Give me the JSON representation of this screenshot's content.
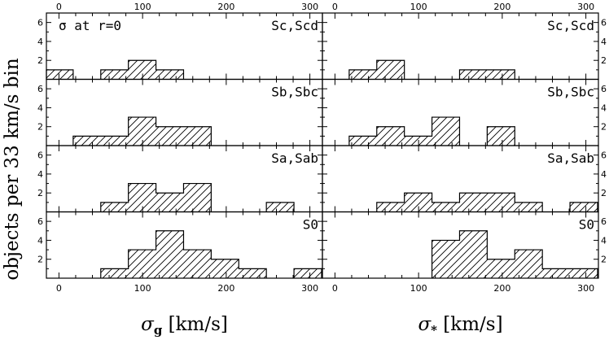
{
  "ylabel": "objects per 33 km/s bin",
  "chart_data": [
    {
      "type": "bar",
      "column": "left",
      "xlabel_symbol": "σ",
      "xlabel_subscript": "g",
      "xlabel_units": " [km/s]",
      "xlim": [
        -15,
        315
      ],
      "xticks": [
        0,
        100,
        200,
        300
      ],
      "ylim": [
        0,
        7
      ],
      "yticks": [
        2,
        4,
        6
      ],
      "bin_width": 33,
      "panels": [
        {
          "label": "Sc,Scd",
          "annotation": "σ at r=0",
          "bins": [
            {
              "x0": -16,
              "x1": 17,
              "count": 1
            },
            {
              "x0": 50,
              "x1": 83,
              "count": 1
            },
            {
              "x0": 83,
              "x1": 116,
              "count": 2
            },
            {
              "x0": 116,
              "x1": 149,
              "count": 1
            }
          ]
        },
        {
          "label": "Sb,Sbc",
          "annotation": "",
          "bins": [
            {
              "x0": 17,
              "x1": 50,
              "count": 1
            },
            {
              "x0": 50,
              "x1": 83,
              "count": 1
            },
            {
              "x0": 83,
              "x1": 116,
              "count": 3
            },
            {
              "x0": 116,
              "x1": 149,
              "count": 2
            },
            {
              "x0": 149,
              "x1": 182,
              "count": 2
            }
          ]
        },
        {
          "label": "Sa,Sab",
          "annotation": "",
          "bins": [
            {
              "x0": 50,
              "x1": 83,
              "count": 1
            },
            {
              "x0": 83,
              "x1": 116,
              "count": 3
            },
            {
              "x0": 116,
              "x1": 149,
              "count": 2
            },
            {
              "x0": 149,
              "x1": 182,
              "count": 3
            },
            {
              "x0": 248,
              "x1": 281,
              "count": 1
            }
          ]
        },
        {
          "label": "S0",
          "annotation": "",
          "bins": [
            {
              "x0": 50,
              "x1": 83,
              "count": 1
            },
            {
              "x0": 83,
              "x1": 116,
              "count": 3
            },
            {
              "x0": 116,
              "x1": 149,
              "count": 5
            },
            {
              "x0": 149,
              "x1": 182,
              "count": 3
            },
            {
              "x0": 182,
              "x1": 215,
              "count": 2
            },
            {
              "x0": 215,
              "x1": 248,
              "count": 1
            },
            {
              "x0": 281,
              "x1": 314,
              "count": 1
            }
          ]
        }
      ]
    },
    {
      "type": "bar",
      "column": "right",
      "xlabel_symbol": "σ",
      "xlabel_subscript": "*",
      "xlabel_units": " [km/s]",
      "xlim": [
        -15,
        315
      ],
      "xticks": [
        0,
        100,
        200,
        300
      ],
      "ylim": [
        0,
        7
      ],
      "yticks": [
        2,
        4,
        6
      ],
      "bin_width": 33,
      "panels": [
        {
          "label": "Sc,Scd",
          "annotation": "",
          "bins": [
            {
              "x0": 17,
              "x1": 50,
              "count": 1
            },
            {
              "x0": 50,
              "x1": 83,
              "count": 2
            },
            {
              "x0": 149,
              "x1": 182,
              "count": 1
            },
            {
              "x0": 182,
              "x1": 215,
              "count": 1
            }
          ]
        },
        {
          "label": "Sb,Sbc",
          "annotation": "",
          "bins": [
            {
              "x0": 17,
              "x1": 50,
              "count": 1
            },
            {
              "x0": 50,
              "x1": 83,
              "count": 2
            },
            {
              "x0": 83,
              "x1": 116,
              "count": 1
            },
            {
              "x0": 116,
              "x1": 149,
              "count": 3
            },
            {
              "x0": 182,
              "x1": 215,
              "count": 2
            }
          ]
        },
        {
          "label": "Sa,Sab",
          "annotation": "",
          "bins": [
            {
              "x0": 50,
              "x1": 83,
              "count": 1
            },
            {
              "x0": 83,
              "x1": 116,
              "count": 2
            },
            {
              "x0": 116,
              "x1": 149,
              "count": 1
            },
            {
              "x0": 149,
              "x1": 182,
              "count": 2
            },
            {
              "x0": 182,
              "x1": 215,
              "count": 2
            },
            {
              "x0": 215,
              "x1": 248,
              "count": 1
            },
            {
              "x0": 281,
              "x1": 314,
              "count": 1
            }
          ]
        },
        {
          "label": "S0",
          "annotation": "",
          "bins": [
            {
              "x0": 116,
              "x1": 149,
              "count": 4
            },
            {
              "x0": 149,
              "x1": 182,
              "count": 5
            },
            {
              "x0": 182,
              "x1": 215,
              "count": 2
            },
            {
              "x0": 215,
              "x1": 248,
              "count": 3
            },
            {
              "x0": 248,
              "x1": 281,
              "count": 1
            },
            {
              "x0": 281,
              "x1": 314,
              "count": 1
            }
          ]
        }
      ]
    }
  ]
}
